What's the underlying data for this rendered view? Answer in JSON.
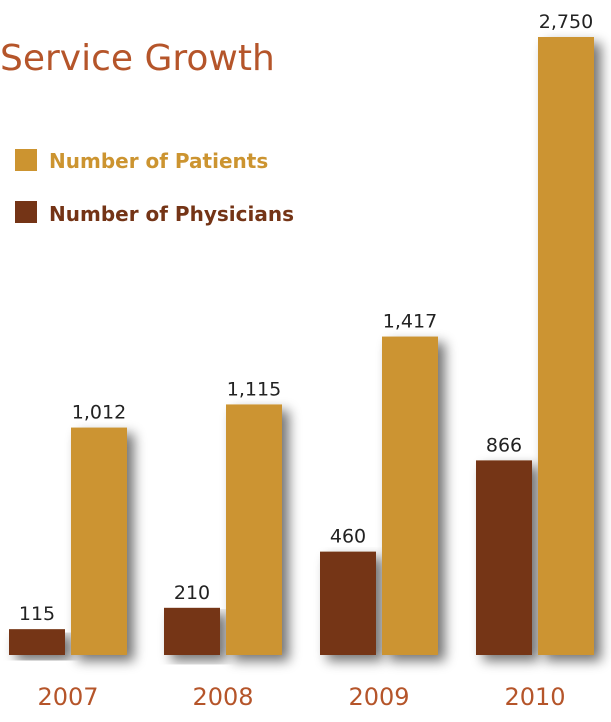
{
  "chart_data": {
    "type": "bar",
    "title": "Service Growth",
    "xlabel": "",
    "ylabel": "",
    "categories": [
      "2007",
      "2008",
      "2009",
      "2010"
    ],
    "series": [
      {
        "name": "Number of Physicians",
        "values": [
          115,
          210,
          460,
          866
        ],
        "labels": [
          "115",
          "210",
          "460",
          "866"
        ],
        "color": "#743416"
      },
      {
        "name": "Number of Patients",
        "values": [
          1012,
          1115,
          1417,
          2750
        ],
        "labels": [
          "1,012",
          "1,115",
          "1,417",
          "2,750"
        ],
        "color": "#CC9430"
      }
    ],
    "ylim": [
      0,
      2750
    ],
    "grid": false,
    "legend_position": "top-left",
    "colors": {
      "title": "#B5552A",
      "years": "#B5552A"
    }
  }
}
